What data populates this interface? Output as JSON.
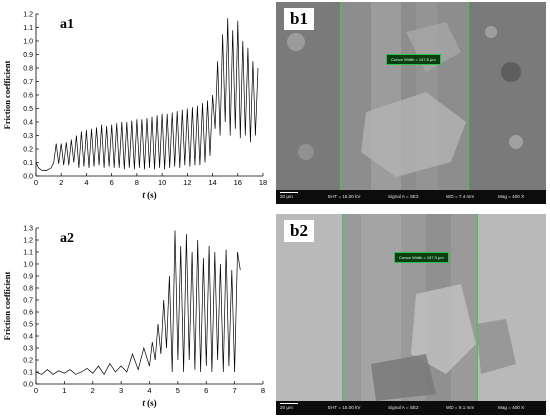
{
  "panels": {
    "a1": {
      "label": "a1"
    },
    "a2": {
      "label": "a2"
    },
    "b1": {
      "label": "b1",
      "measure": "Cursor Width = 147.6 µm",
      "scale": "20 µm",
      "eht": "EHT = 15.00 kV",
      "signal": "Signal A = SE2",
      "wd": "WD = 7.4 mm",
      "mag": "Mag = 400 X"
    },
    "b2": {
      "label": "b2",
      "measure": "Cursor Width = 157.3 µm",
      "scale": "20 µm",
      "eht": "EHT = 15.00 kV",
      "signal": "Signal A = SE2",
      "wd": "WD = 9.1 mm",
      "mag": "Mag = 400 X"
    }
  },
  "colors": {
    "line": "#000000",
    "sem_measure_line": "#33d04a",
    "sem_bar": "#0c0c0c"
  },
  "chart_data": [
    {
      "type": "line",
      "panel": "a1",
      "xlabel": "t (s)",
      "ylabel": "Friction coefficient",
      "xlim": [
        0,
        18
      ],
      "ylim": [
        0,
        1.2
      ],
      "xticks": [
        0,
        2,
        4,
        6,
        8,
        10,
        12,
        14,
        16,
        18
      ],
      "yticks": [
        0.0,
        0.1,
        0.2,
        0.3,
        0.4,
        0.5,
        0.6,
        0.7,
        0.8,
        0.9,
        1.0,
        1.1,
        1.2
      ],
      "x": [
        0,
        0.2,
        0.5,
        0.8,
        1.0,
        1.2,
        1.4,
        1.6,
        1.8,
        2.0,
        2.2,
        2.4,
        2.6,
        2.8,
        3.0,
        3.2,
        3.4,
        3.6,
        3.8,
        4.0,
        4.2,
        4.4,
        4.6,
        4.8,
        5.0,
        5.2,
        5.4,
        5.6,
        5.8,
        6.0,
        6.2,
        6.4,
        6.6,
        6.8,
        7.0,
        7.2,
        7.4,
        7.6,
        7.8,
        8.0,
        8.2,
        8.4,
        8.6,
        8.8,
        9.0,
        9.2,
        9.4,
        9.6,
        9.8,
        10.0,
        10.2,
        10.4,
        10.6,
        10.8,
        11.0,
        11.2,
        11.4,
        11.6,
        11.8,
        12.0,
        12.2,
        12.4,
        12.6,
        12.8,
        13.0,
        13.2,
        13.4,
        13.6,
        13.8,
        14.0,
        14.2,
        14.4,
        14.6,
        14.8,
        15.0,
        15.2,
        15.4,
        15.6,
        15.8,
        16.0,
        16.2,
        16.4,
        16.6,
        16.8,
        17.0,
        17.2,
        17.4,
        17.6
      ],
      "y": [
        0.1,
        0.06,
        0.04,
        0.04,
        0.05,
        0.06,
        0.1,
        0.24,
        0.09,
        0.24,
        0.08,
        0.25,
        0.08,
        0.27,
        0.1,
        0.3,
        0.06,
        0.33,
        0.07,
        0.34,
        0.06,
        0.35,
        0.07,
        0.36,
        0.08,
        0.38,
        0.06,
        0.37,
        0.07,
        0.38,
        0.06,
        0.39,
        0.06,
        0.4,
        0.05,
        0.4,
        0.06,
        0.41,
        0.05,
        0.42,
        0.06,
        0.42,
        0.05,
        0.43,
        0.06,
        0.44,
        0.05,
        0.45,
        0.06,
        0.46,
        0.05,
        0.46,
        0.06,
        0.47,
        0.07,
        0.48,
        0.06,
        0.49,
        0.08,
        0.5,
        0.07,
        0.51,
        0.08,
        0.52,
        0.08,
        0.54,
        0.1,
        0.56,
        0.15,
        0.6,
        0.35,
        0.85,
        0.3,
        1.05,
        0.4,
        1.17,
        0.3,
        1.08,
        0.35,
        1.15,
        0.28,
        1.0,
        0.3,
        0.95,
        0.25,
        0.85,
        0.3,
        0.8
      ]
    },
    {
      "type": "line",
      "panel": "a2",
      "xlabel": "t (s)",
      "ylabel": "Friction coefficient",
      "xlim": [
        0,
        8
      ],
      "ylim": [
        0,
        1.3
      ],
      "xticks": [
        0,
        1,
        2,
        3,
        4,
        5,
        6,
        7,
        8
      ],
      "yticks": [
        0.0,
        0.1,
        0.2,
        0.3,
        0.4,
        0.5,
        0.6,
        0.7,
        0.8,
        0.9,
        1.0,
        1.1,
        1.2,
        1.3
      ],
      "x": [
        0,
        0.2,
        0.4,
        0.6,
        0.8,
        1.0,
        1.2,
        1.4,
        1.6,
        1.8,
        2.0,
        2.2,
        2.4,
        2.6,
        2.8,
        3.0,
        3.2,
        3.4,
        3.6,
        3.8,
        4.0,
        4.1,
        4.2,
        4.3,
        4.4,
        4.5,
        4.6,
        4.7,
        4.8,
        4.9,
        5.0,
        5.1,
        5.2,
        5.3,
        5.4,
        5.5,
        5.6,
        5.7,
        5.8,
        5.9,
        6.0,
        6.1,
        6.2,
        6.3,
        6.4,
        6.5,
        6.6,
        6.7,
        6.8,
        6.9,
        7.0,
        7.1,
        7.2
      ],
      "y": [
        0.1,
        0.08,
        0.12,
        0.08,
        0.11,
        0.09,
        0.12,
        0.08,
        0.1,
        0.13,
        0.09,
        0.15,
        0.08,
        0.17,
        0.1,
        0.15,
        0.1,
        0.25,
        0.12,
        0.3,
        0.15,
        0.35,
        0.2,
        0.5,
        0.25,
        0.7,
        0.3,
        0.9,
        0.1,
        1.28,
        0.2,
        1.15,
        0.1,
        1.25,
        0.2,
        1.1,
        0.12,
        1.2,
        0.1,
        1.05,
        0.15,
        1.15,
        0.1,
        1.1,
        0.2,
        1.0,
        0.1,
        1.12,
        0.15,
        0.95,
        0.1,
        1.1,
        0.95
      ]
    }
  ]
}
